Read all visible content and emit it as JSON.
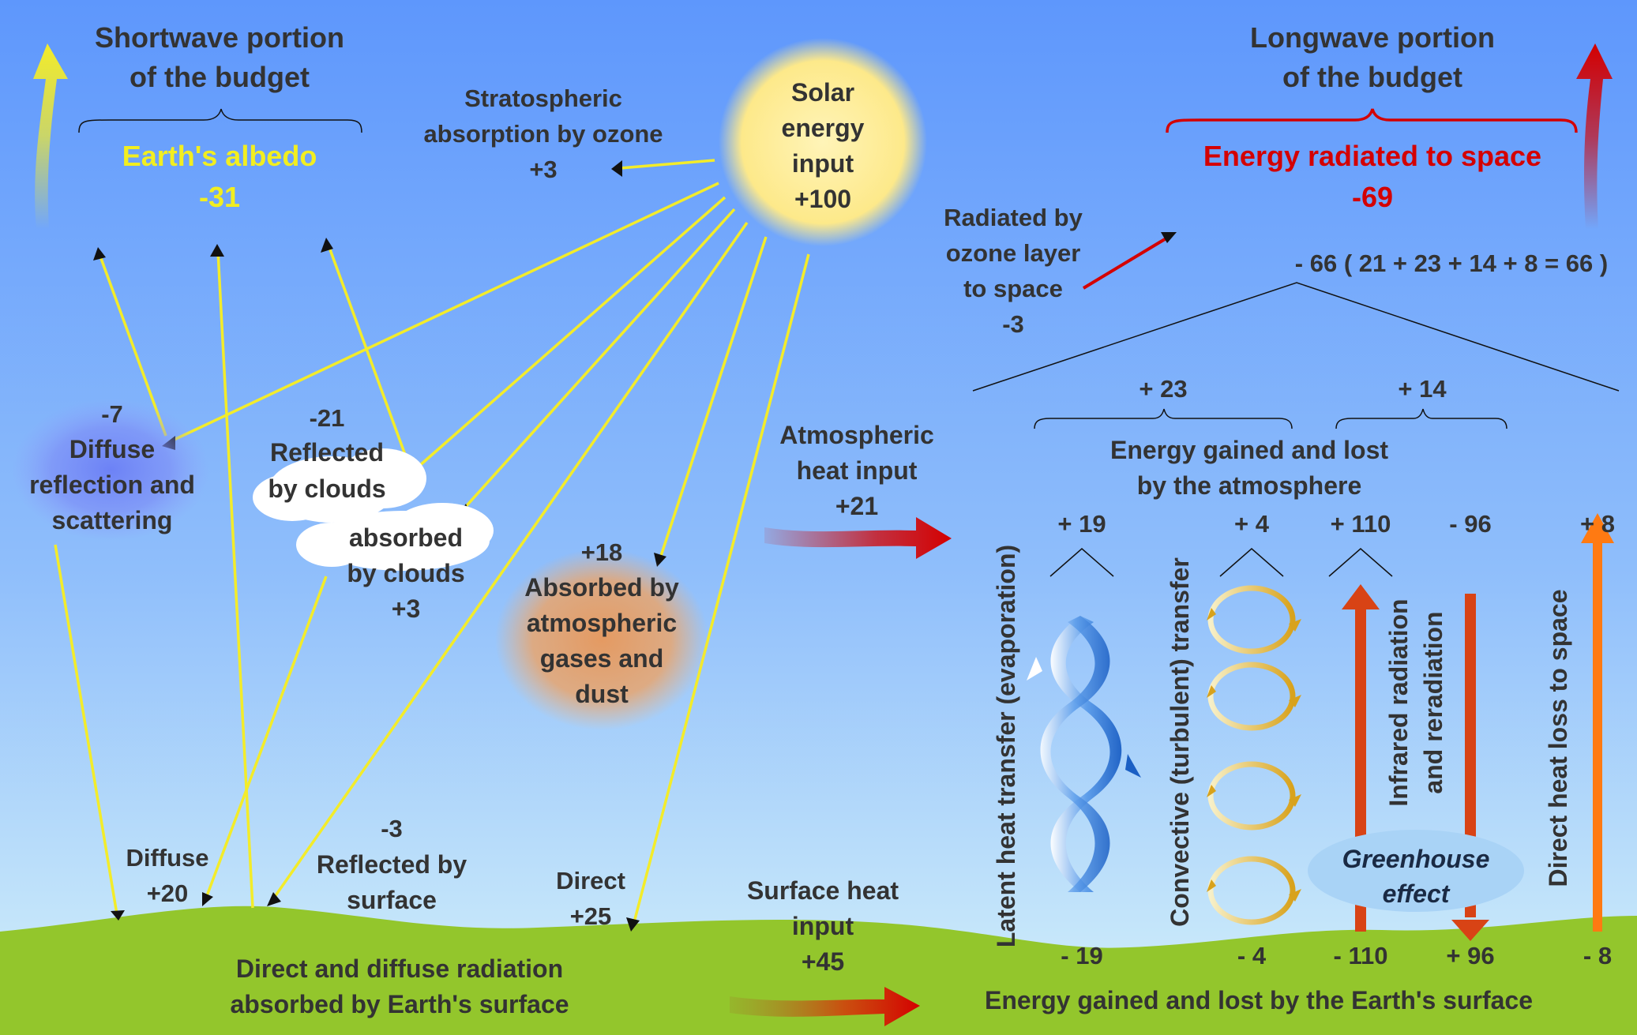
{
  "shortwave": {
    "title_line1": "Shortwave portion",
    "title_line2": "of the budget",
    "albedo_label": "Earth's albedo",
    "albedo_value": "-31"
  },
  "longwave": {
    "title_line1": "Longwave portion",
    "title_line2": "of the budget",
    "radiated_label": "Energy radiated to space",
    "radiated_value": "-69",
    "breakdown": "- 66 ( 21 + 23 + 14 + 8 = 66 )"
  },
  "solar": {
    "line1": "Solar",
    "line2": "energy",
    "line3": "input",
    "value": "+100"
  },
  "stratospheric": {
    "line1": "Stratospheric",
    "line2": "absorption by ozone",
    "value": "+3"
  },
  "ozone_radiated": {
    "line1": "Radiated by",
    "line2": "ozone layer",
    "line3": "to space",
    "value": "-3"
  },
  "diffuse_reflection": {
    "value": "-7",
    "line1": "Diffuse",
    "line2": "reflection and",
    "line3": "scattering"
  },
  "reflected_clouds": {
    "value": "-21",
    "line1": "Reflected",
    "line2": "by clouds"
  },
  "absorbed_clouds": {
    "line1": "absorbed",
    "line2": "by clouds",
    "value": "+3"
  },
  "absorbed_gases": {
    "value": "+18",
    "line1": "Absorbed by",
    "line2": "atmospheric",
    "line3": "gases and",
    "line4": "dust"
  },
  "atmospheric_heat": {
    "line1": "Atmospheric",
    "line2": "heat input",
    "value": "+21"
  },
  "diffuse_surface": {
    "label": "Diffuse",
    "value": "+20"
  },
  "reflected_surface": {
    "value": "-3",
    "line1": "Reflected by",
    "line2": "surface"
  },
  "direct_surface": {
    "label": "Direct",
    "value": "+25"
  },
  "surface_heat": {
    "line1": "Surface heat",
    "line2": "input",
    "value": "+45"
  },
  "ground": {
    "absorbed_line1": "Direct and diffuse radiation",
    "absorbed_line2": "absorbed by Earth's surface",
    "surface_label": "Energy gained and lost by the Earth's surface"
  },
  "atmosphere": {
    "plus23": "+ 23",
    "plus14": "+ 14",
    "line1": "Energy gained and lost",
    "line2": "by the atmosphere"
  },
  "columns": {
    "latent": {
      "label": "Latent heat transfer (evaporation)",
      "top": "+ 19",
      "bottom": "- 19"
    },
    "convective": {
      "label": "Convective (turbulent) transfer",
      "top": "+ 4",
      "bottom": "- 4"
    },
    "infrared": {
      "line1": "Infrared radiation",
      "line2": "and reradiation",
      "top_up": "+ 110",
      "top_down": "- 96",
      "bottom_up": "- 110",
      "bottom_down": "+ 96"
    },
    "direct_loss": {
      "label": "Direct heat loss to space",
      "top": "+ 8",
      "bottom": "- 8"
    }
  },
  "greenhouse": {
    "line1": "Greenhouse",
    "line2": "effect"
  },
  "colors": {
    "sky_top": "#5e97fc",
    "sky_bottom": "#d4f1fa",
    "ground": "#93c62c",
    "shortwave_yellow": "#f3ec2a",
    "longwave_red": "#d40000",
    "infrared_arrow": "#d84315",
    "direct_loss_arrow": "#ff7a12",
    "greenhouse_fill": "#a9d3f6"
  }
}
